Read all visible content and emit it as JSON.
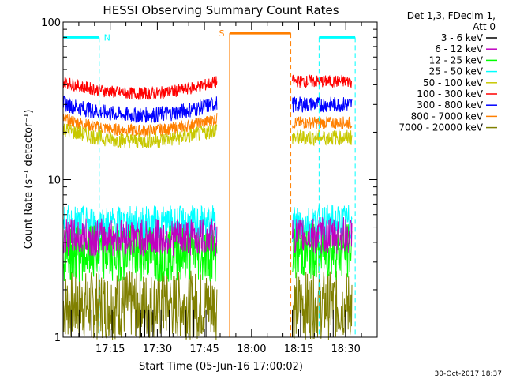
{
  "chart_data": {
    "type": "line",
    "title": "HESSI Observing Summary Count Rates",
    "xlabel": "Start Time (05-Jun-16 17:00:02)",
    "ylabel": "Count Rate (s⁻¹ detector⁻¹)",
    "y_scale": "log",
    "ylim": [
      1,
      100
    ],
    "xlim_minutes": [
      0,
      100
    ],
    "x_ticks": [
      {
        "minute": 15,
        "label": "17:15"
      },
      {
        "minute": 30,
        "label": "17:30"
      },
      {
        "minute": 45,
        "label": "17:45"
      },
      {
        "minute": 60,
        "label": "18:00"
      },
      {
        "minute": 75,
        "label": "18:15"
      },
      {
        "minute": 90,
        "label": "18:30"
      }
    ],
    "y_ticks": [
      {
        "value": 1,
        "label": "1"
      },
      {
        "value": 10,
        "label": "10"
      },
      {
        "value": 100,
        "label": "100"
      }
    ],
    "legend_title": "Det 1,3, FDecim 1,",
    "legend_subtitle": "Att 0",
    "legend_placement": "right-outside",
    "series": [
      {
        "name": "3 - 6 keV",
        "color": "#000000",
        "seg1": 1.0,
        "seg2": 1.0,
        "noise": 0.0,
        "sparse": true
      },
      {
        "name": "6 - 12 keV",
        "color": "#c000c0",
        "seg1": 4.3,
        "seg2": 4.4,
        "noise": 0.12,
        "sparse": false
      },
      {
        "name": "12 - 25 keV",
        "color": "#00ff00",
        "seg1": 3.4,
        "seg2": 3.5,
        "noise": 0.18,
        "sparse": false
      },
      {
        "name": "25 - 50 keV",
        "color": "#00ffff",
        "seg1": 5.2,
        "seg2": 5.3,
        "noise": 0.12,
        "sparse": false
      },
      {
        "name": "50 - 100 keV",
        "color": "#c8c800",
        "seg1": 18.5,
        "seg2": 18.5,
        "noise": 0.05,
        "sparse": false
      },
      {
        "name": "100 - 300 keV",
        "color": "#ff0000",
        "seg1": 37,
        "seg2": 42,
        "noise": 0.04,
        "sparse": false
      },
      {
        "name": "300 - 800 keV",
        "color": "#0000ff",
        "seg1": 27,
        "seg2": 30,
        "noise": 0.05,
        "sparse": false
      },
      {
        "name": "800 - 7000 keV",
        "color": "#ff7f00",
        "seg1": 21.5,
        "seg2": 23,
        "noise": 0.04,
        "sparse": false
      },
      {
        "name": "7000 - 20000 keV",
        "color": "#808000",
        "seg1": 1.6,
        "seg2": 1.6,
        "noise": 0.22,
        "sparse": false
      }
    ],
    "data_segments_minutes": [
      [
        0,
        49
      ],
      [
        73,
        92
      ]
    ],
    "annotations": [
      {
        "label": "N",
        "color": "#00ffff",
        "start_minute": 0,
        "end_minute": 11.5,
        "level": 80
      },
      {
        "label": "",
        "color": "#00ffff",
        "start_minute": 81.5,
        "end_minute": 93,
        "level": 80
      },
      {
        "label": "S",
        "color": "#ff7f00",
        "start_minute": 53,
        "end_minute": 72.5,
        "level": 85
      }
    ],
    "timestamp": "30-Oct-2017 18:37"
  }
}
